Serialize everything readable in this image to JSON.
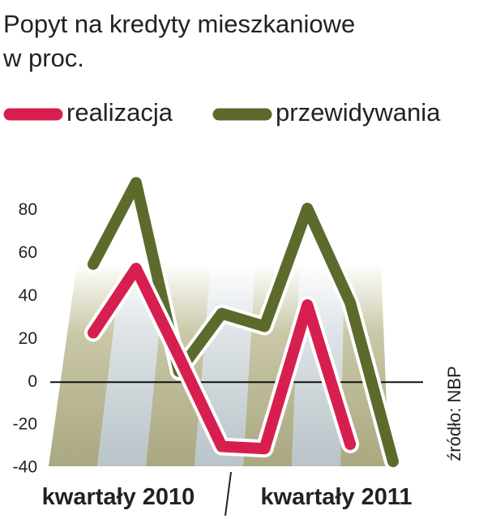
{
  "chart_data": {
    "type": "line",
    "title": "Popyt na kredyty mieszkaniowe",
    "subtitle": "w proc.",
    "source": "źródło: NBP",
    "x_labels": [
      "kwartały 2010",
      "kwartały 2011"
    ],
    "categories": [
      null,
      null,
      null,
      null,
      null,
      null,
      null,
      null
    ],
    "series": [
      {
        "name": "realizacja",
        "color": "#d71f4f",
        "values": [
          23,
          53,
          12,
          -30,
          -31,
          36,
          -29,
          null
        ]
      },
      {
        "name": "przewidywania",
        "color": "#5c6a2c",
        "values": [
          55,
          93,
          5,
          32,
          26,
          81,
          37,
          -37
        ]
      }
    ],
    "ylim": [
      -40,
      95
    ],
    "yticks": [
      -40,
      -20,
      0,
      20,
      40,
      60,
      80
    ]
  }
}
